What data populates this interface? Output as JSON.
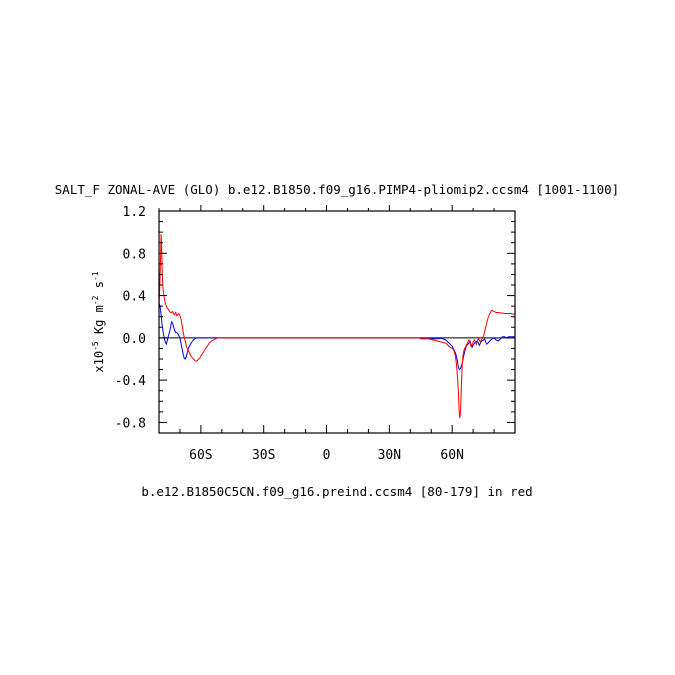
{
  "chart_data": {
    "type": "line",
    "title": "SALT_F ZONAL-AVE (GLO) b.e12.B1850.f09_g16.PIMP4-pliomip2.ccsm4 [1001-1100]",
    "xlabel": "b.e12.B1850C5CN.f09_g16.preind.ccsm4 [80-179] in red",
    "ylabel": {
      "prefix": "x10",
      "exp1": "-5",
      "mid": " Kg m",
      "exp2": "-2",
      "mid2": " s",
      "exp3": "-1"
    },
    "xlim": [
      -80,
      90
    ],
    "ylim": [
      -0.9,
      1.2
    ],
    "x_ticks": [
      {
        "value": -60,
        "label": "60S"
      },
      {
        "value": -30,
        "label": "30S"
      },
      {
        "value": 0,
        "label": "0"
      },
      {
        "value": 30,
        "label": "30N"
      },
      {
        "value": 60,
        "label": "60N"
      }
    ],
    "y_ticks": [
      {
        "value": 1.2,
        "label": "1.2"
      },
      {
        "value": 0.8,
        "label": "0.8"
      },
      {
        "value": 0.4,
        "label": "0.4"
      },
      {
        "value": 0.0,
        "label": "0.0"
      },
      {
        "value": -0.4,
        "label": "-0.4"
      },
      {
        "value": -0.8,
        "label": "-0.8"
      }
    ],
    "series": [
      {
        "color": "#0000ff",
        "points": [
          [
            -80,
            0.33
          ],
          [
            -79.5,
            0.3
          ],
          [
            -79,
            0.22
          ],
          [
            -78.5,
            0.12
          ],
          [
            -78,
            0.05
          ],
          [
            -77.5,
            0.0
          ],
          [
            -77,
            -0.04
          ],
          [
            -76.5,
            -0.06
          ],
          [
            -76,
            -0.02
          ],
          [
            -75.5,
            0.02
          ],
          [
            -75,
            0.05
          ],
          [
            -74.5,
            0.1
          ],
          [
            -74,
            0.15
          ],
          [
            -73.5,
            0.14
          ],
          [
            -73,
            0.1
          ],
          [
            -72.5,
            0.07
          ],
          [
            -72,
            0.05
          ],
          [
            -71.5,
            0.05
          ],
          [
            -71,
            0.04
          ],
          [
            -70.5,
            0.02
          ],
          [
            -70,
            0.0
          ],
          [
            -69.5,
            -0.05
          ],
          [
            -69,
            -0.1
          ],
          [
            -68.5,
            -0.15
          ],
          [
            -68,
            -0.19
          ],
          [
            -67.5,
            -0.2
          ],
          [
            -67,
            -0.18
          ],
          [
            -66.5,
            -0.14
          ],
          [
            -66,
            -0.1
          ],
          [
            -65,
            -0.06
          ],
          [
            -64,
            -0.03
          ],
          [
            -63,
            -0.01
          ],
          [
            -62,
            0.0
          ],
          [
            -50,
            0.0
          ],
          [
            -20,
            0.0
          ],
          [
            0,
            0.0
          ],
          [
            20,
            0.0
          ],
          [
            44,
            0.0
          ],
          [
            45,
            -0.005
          ],
          [
            47,
            -0.008
          ],
          [
            49,
            -0.005
          ],
          [
            51,
            -0.01
          ],
          [
            53,
            -0.008
          ],
          [
            55,
            -0.005
          ],
          [
            57,
            -0.02
          ],
          [
            58,
            -0.04
          ],
          [
            59,
            -0.06
          ],
          [
            60,
            -0.08
          ],
          [
            60.5,
            -0.1
          ],
          [
            61,
            -0.12
          ],
          [
            61.5,
            -0.14
          ],
          [
            62,
            -0.17
          ],
          [
            62.5,
            -0.22
          ],
          [
            63,
            -0.28
          ],
          [
            63.5,
            -0.3
          ],
          [
            64,
            -0.29
          ],
          [
            64.5,
            -0.26
          ],
          [
            65,
            -0.22
          ],
          [
            65.5,
            -0.17
          ],
          [
            66,
            -0.13
          ],
          [
            66.5,
            -0.09
          ],
          [
            67,
            -0.07
          ],
          [
            68,
            -0.05
          ],
          [
            68.5,
            -0.03
          ],
          [
            69,
            -0.06
          ],
          [
            69.5,
            -0.09
          ],
          [
            70,
            -0.07
          ],
          [
            71,
            -0.04
          ],
          [
            72,
            -0.03
          ],
          [
            72.5,
            -0.05
          ],
          [
            73,
            -0.07
          ],
          [
            73.5,
            -0.05
          ],
          [
            74,
            -0.03
          ],
          [
            75,
            -0.02
          ],
          [
            75.5,
            -0.01
          ],
          [
            76,
            -0.04
          ],
          [
            76.5,
            -0.06
          ],
          [
            77,
            -0.05
          ],
          [
            78,
            -0.03
          ],
          [
            79,
            -0.01
          ],
          [
            80,
            0.0
          ],
          [
            81,
            -0.02
          ],
          [
            82,
            -0.03
          ],
          [
            83,
            -0.01
          ],
          [
            84,
            0.01
          ],
          [
            85,
            0.01
          ],
          [
            86,
            0.0
          ],
          [
            87,
            0.01
          ],
          [
            88,
            0.01
          ],
          [
            89,
            0.01
          ],
          [
            90,
            0.01
          ]
        ]
      },
      {
        "color": "#ff0000",
        "points": [
          [
            -80,
            0.3
          ],
          [
            -79.6,
            0.5
          ],
          [
            -79.2,
            0.8
          ],
          [
            -79.0,
            0.98
          ],
          [
            -78.8,
            0.9
          ],
          [
            -78.5,
            0.65
          ],
          [
            -78.2,
            0.5
          ],
          [
            -78,
            0.45
          ],
          [
            -77.5,
            0.38
          ],
          [
            -77,
            0.33
          ],
          [
            -76.5,
            0.3
          ],
          [
            -76,
            0.28
          ],
          [
            -75.5,
            0.27
          ],
          [
            -75,
            0.25
          ],
          [
            -74.5,
            0.24
          ],
          [
            -74,
            0.24
          ],
          [
            -73.5,
            0.25
          ],
          [
            -73,
            0.23
          ],
          [
            -72.5,
            0.22
          ],
          [
            -72,
            0.24
          ],
          [
            -71.5,
            0.21
          ],
          [
            -71,
            0.22
          ],
          [
            -70.5,
            0.23
          ],
          [
            -70,
            0.21
          ],
          [
            -69.5,
            0.18
          ],
          [
            -69,
            0.12
          ],
          [
            -68.5,
            0.06
          ],
          [
            -68,
            0.01
          ],
          [
            -67.5,
            -0.03
          ],
          [
            -67,
            -0.07
          ],
          [
            -66.5,
            -0.1
          ],
          [
            -66,
            -0.12
          ],
          [
            -65.5,
            -0.14
          ],
          [
            -65,
            -0.16
          ],
          [
            -64.5,
            -0.18
          ],
          [
            -64,
            -0.19
          ],
          [
            -63.5,
            -0.2
          ],
          [
            -63,
            -0.21
          ],
          [
            -62.5,
            -0.22
          ],
          [
            -62,
            -0.22
          ],
          [
            -61.5,
            -0.21
          ],
          [
            -61,
            -0.2
          ],
          [
            -60.5,
            -0.19
          ],
          [
            -60,
            -0.17
          ],
          [
            -59,
            -0.14
          ],
          [
            -58,
            -0.11
          ],
          [
            -57,
            -0.08
          ],
          [
            -56,
            -0.05
          ],
          [
            -55,
            -0.03
          ],
          [
            -54,
            -0.02
          ],
          [
            -53,
            -0.01
          ],
          [
            -52,
            0.0
          ],
          [
            -30,
            0.0
          ],
          [
            0,
            0.0
          ],
          [
            30,
            0.0
          ],
          [
            44,
            0.0
          ],
          [
            45,
            -0.01
          ],
          [
            47,
            -0.01
          ],
          [
            49,
            -0.01
          ],
          [
            51,
            -0.02
          ],
          [
            53,
            -0.03
          ],
          [
            55,
            -0.04
          ],
          [
            57,
            -0.05
          ],
          [
            58,
            -0.07
          ],
          [
            59,
            -0.09
          ],
          [
            60,
            -0.1
          ],
          [
            60.5,
            -0.11
          ],
          [
            61,
            -0.13
          ],
          [
            61.5,
            -0.17
          ],
          [
            62,
            -0.24
          ],
          [
            62.5,
            -0.36
          ],
          [
            63,
            -0.52
          ],
          [
            63.3,
            -0.68
          ],
          [
            63.6,
            -0.76
          ],
          [
            63.9,
            -0.72
          ],
          [
            64.2,
            -0.58
          ],
          [
            64.5,
            -0.4
          ],
          [
            64.8,
            -0.25
          ],
          [
            65.2,
            -0.16
          ],
          [
            65.6,
            -0.12
          ],
          [
            66,
            -0.1
          ],
          [
            66.5,
            -0.08
          ],
          [
            67,
            -0.06
          ],
          [
            67.5,
            -0.04
          ],
          [
            68,
            -0.02
          ],
          [
            68.5,
            -0.04
          ],
          [
            69,
            -0.08
          ],
          [
            69.5,
            -0.07
          ],
          [
            70,
            -0.04
          ],
          [
            70.5,
            -0.02
          ],
          [
            71,
            -0.03
          ],
          [
            71.5,
            -0.06
          ],
          [
            72,
            -0.03
          ],
          [
            72.5,
            -0.01
          ],
          [
            73,
            -0.02
          ],
          [
            73.5,
            -0.04
          ],
          [
            74,
            -0.02
          ],
          [
            74.5,
            0.0
          ],
          [
            75,
            0.02
          ],
          [
            75.5,
            0.06
          ],
          [
            76,
            0.1
          ],
          [
            76.5,
            0.14
          ],
          [
            77,
            0.18
          ],
          [
            77.5,
            0.21
          ],
          [
            78,
            0.23
          ],
          [
            78.5,
            0.25
          ],
          [
            79,
            0.26
          ],
          [
            80,
            0.25
          ],
          [
            81,
            0.24
          ],
          [
            82,
            0.24
          ],
          [
            83,
            0.235
          ],
          [
            84,
            0.235
          ],
          [
            85,
            0.23
          ],
          [
            86,
            0.23
          ],
          [
            87,
            0.23
          ],
          [
            88,
            0.23
          ],
          [
            89,
            0.225
          ],
          [
            90,
            0.225
          ]
        ]
      }
    ]
  }
}
